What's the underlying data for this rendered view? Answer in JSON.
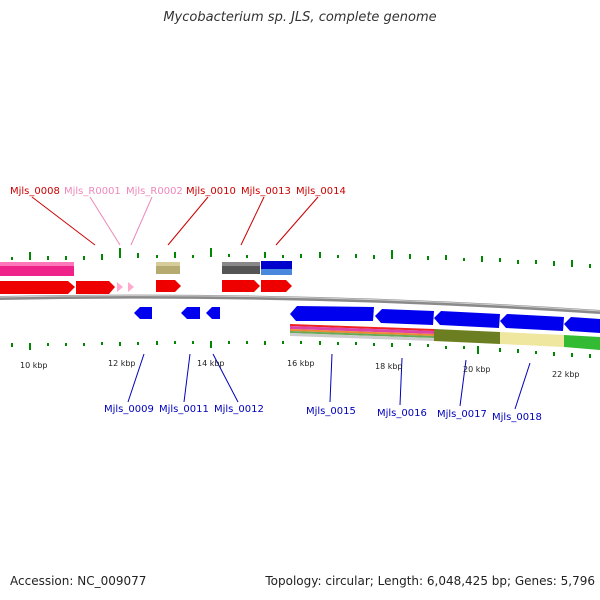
{
  "title": "Mycobacterium sp. JLS, complete genome",
  "footer": {
    "accession": "Accession: NC_009077",
    "summary": "Topology: circular; Length: 6,048,425 bp; Genes: 5,796"
  },
  "colors": {
    "cds_forward": "#ff0000",
    "cds_reverse": "#0000ff",
    "rna": "#ffaacc",
    "label_forward": "#cc0000",
    "label_rna": "#ee88bb",
    "label_reverse": "#0000bb",
    "gc_tick": "#008800",
    "backbone": "#888888"
  },
  "scale_labels": [
    "10 kbp",
    "12 kbp",
    "14 kbp",
    "16 kbp",
    "18 kbp",
    "20 kbp",
    "22 kbp"
  ],
  "top_labels": [
    "Mjls_0008",
    "Mjls_R0001",
    "Mjls_R0002",
    "Mjls_0010",
    "Mjls_0013",
    "Mjls_0014"
  ],
  "bottom_labels": [
    "Mjls_0009",
    "Mjls_0011",
    "Mjls_0012",
    "Mjls_0015",
    "Mjls_0016",
    "Mjls_0017",
    "Mjls_0018"
  ]
}
